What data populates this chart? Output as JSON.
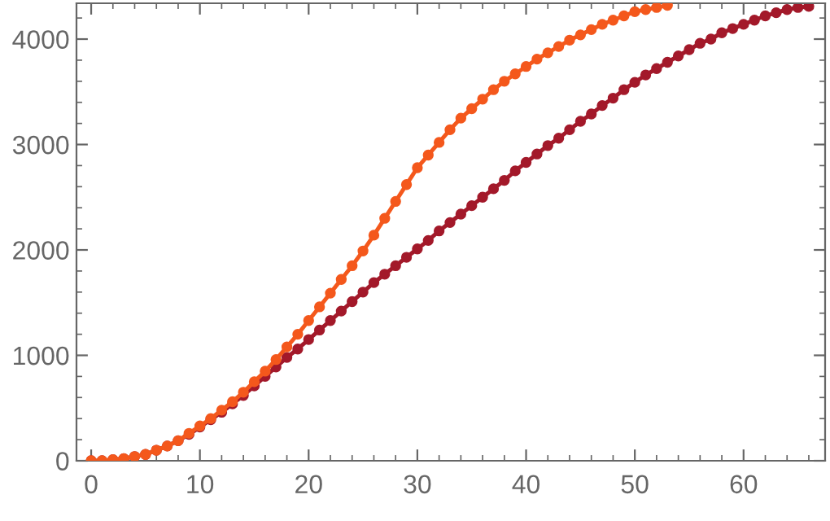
{
  "chart_data": {
    "type": "line",
    "marker": "circle",
    "line_style": "solid",
    "grid": false,
    "xlim": [
      -1.35,
      67.5
    ],
    "ylim": [
      0,
      4340
    ],
    "xticks": [
      0,
      10,
      20,
      30,
      40,
      50,
      60,
      {
        "value": 2,
        "label": null
      },
      {
        "value": 4,
        "label": null
      },
      {
        "value": 6,
        "label": null
      },
      {
        "value": 8,
        "label": null
      },
      {
        "value": 12,
        "label": null
      },
      {
        "value": 14,
        "label": null
      },
      {
        "value": 16,
        "label": null
      },
      {
        "value": 18,
        "label": null
      },
      {
        "value": 22,
        "label": null
      },
      {
        "value": 24,
        "label": null
      },
      {
        "value": 26,
        "label": null
      },
      {
        "value": 28,
        "label": null
      },
      {
        "value": 32,
        "label": null
      },
      {
        "value": 34,
        "label": null
      },
      {
        "value": 36,
        "label": null
      },
      {
        "value": 38,
        "label": null
      },
      {
        "value": 42,
        "label": null
      },
      {
        "value": 44,
        "label": null
      },
      {
        "value": 46,
        "label": null
      },
      {
        "value": 48,
        "label": null
      },
      {
        "value": 52,
        "label": null
      },
      {
        "value": 54,
        "label": null
      },
      {
        "value": 56,
        "label": null
      },
      {
        "value": 58,
        "label": null
      },
      {
        "value": 62,
        "label": null
      },
      {
        "value": 64,
        "label": null
      },
      {
        "value": 66,
        "label": null
      }
    ],
    "yticks": [
      0,
      1000,
      2000,
      3000,
      4000,
      {
        "value": 200,
        "label": null
      },
      {
        "value": 400,
        "label": null
      },
      {
        "value": 600,
        "label": null
      },
      {
        "value": 800,
        "label": null
      },
      {
        "value": 1200,
        "label": null
      },
      {
        "value": 1400,
        "label": null
      },
      {
        "value": 1600,
        "label": null
      },
      {
        "value": 1800,
        "label": null
      },
      {
        "value": 2200,
        "label": null
      },
      {
        "value": 2400,
        "label": null
      },
      {
        "value": 2600,
        "label": null
      },
      {
        "value": 2800,
        "label": null
      },
      {
        "value": 3200,
        "label": null
      },
      {
        "value": 3400,
        "label": null
      },
      {
        "value": 3600,
        "label": null
      },
      {
        "value": 3800,
        "label": null
      },
      {
        "value": 4200,
        "label": null
      }
    ],
    "series": [
      {
        "color": "#a3192a",
        "x": [
          0,
          1,
          2,
          3,
          4,
          5,
          6,
          7,
          8,
          9,
          10,
          11,
          12,
          13,
          14,
          15,
          16,
          17,
          18,
          19,
          20,
          21,
          22,
          23,
          24,
          25,
          26,
          27,
          28,
          29,
          30,
          31,
          32,
          33,
          34,
          35,
          36,
          37,
          38,
          39,
          40,
          41,
          42,
          43,
          44,
          45,
          46,
          47,
          48,
          49,
          50,
          51,
          52,
          53,
          54,
          55,
          56,
          57,
          58,
          59,
          60,
          61,
          62,
          63,
          64,
          65,
          66
        ],
        "values": [
          0,
          0,
          10,
          20,
          40,
          60,
          100,
          140,
          190,
          250,
          320,
          390,
          460,
          540,
          620,
          710,
          800,
          890,
          980,
          1060,
          1150,
          1240,
          1330,
          1420,
          1510,
          1600,
          1690,
          1770,
          1850,
          1930,
          2010,
          2090,
          2180,
          2260,
          2340,
          2420,
          2500,
          2580,
          2660,
          2750,
          2830,
          2910,
          2990,
          3060,
          3140,
          3220,
          3290,
          3370,
          3440,
          3520,
          3590,
          3660,
          3720,
          3780,
          3840,
          3900,
          3960,
          4000,
          4060,
          4100,
          4140,
          4180,
          4220,
          4250,
          4280,
          4300,
          4310
        ]
      },
      {
        "color": "#f4581c",
        "x": [
          0,
          1,
          2,
          3,
          4,
          5,
          6,
          7,
          8,
          9,
          10,
          11,
          12,
          13,
          14,
          15,
          16,
          17,
          18,
          19,
          20,
          21,
          22,
          23,
          24,
          25,
          26,
          27,
          28,
          29,
          30,
          31,
          32,
          33,
          34,
          35,
          36,
          37,
          38,
          39,
          40,
          41,
          42,
          43,
          44,
          45,
          46,
          47,
          48,
          49,
          50,
          51,
          52,
          53
        ],
        "values": [
          0,
          0,
          10,
          20,
          40,
          60,
          100,
          140,
          190,
          260,
          330,
          400,
          480,
          560,
          650,
          750,
          850,
          960,
          1080,
          1200,
          1330,
          1460,
          1590,
          1720,
          1850,
          1990,
          2140,
          2300,
          2460,
          2620,
          2780,
          2900,
          3020,
          3140,
          3250,
          3340,
          3430,
          3520,
          3600,
          3670,
          3740,
          3810,
          3870,
          3930,
          3990,
          4040,
          4090,
          4140,
          4180,
          4220,
          4260,
          4280,
          4300,
          4320
        ]
      }
    ]
  }
}
